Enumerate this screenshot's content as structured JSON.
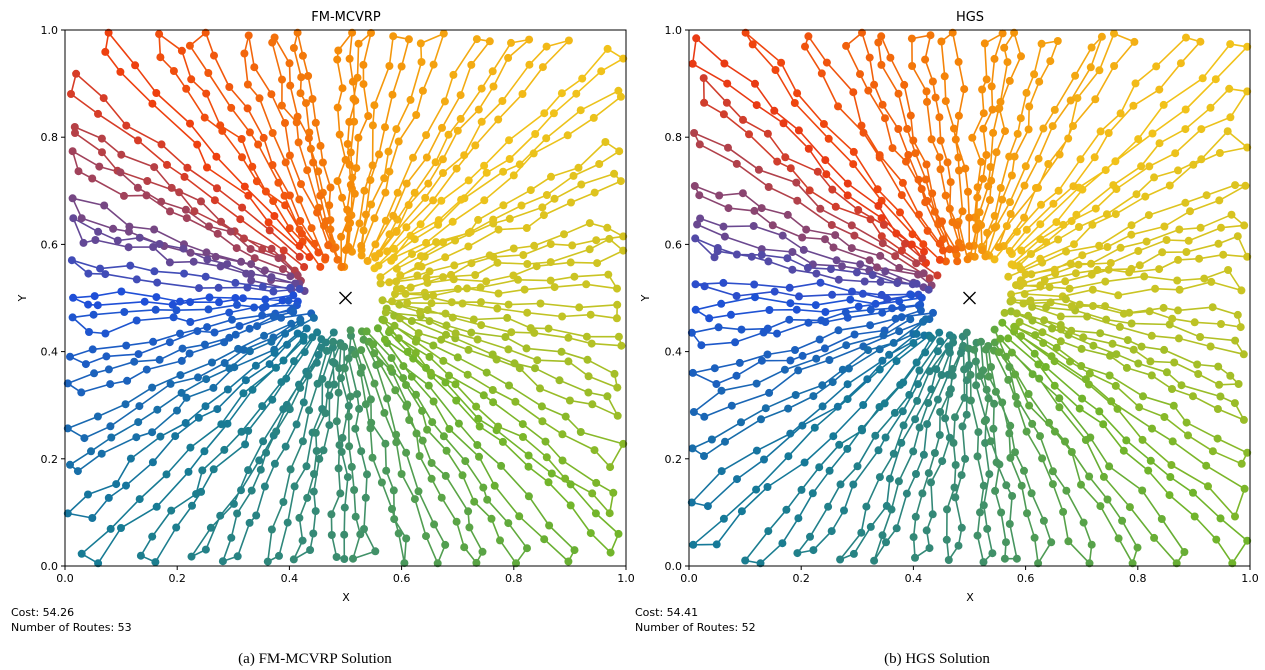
{
  "chart_data": [
    {
      "type": "scatter",
      "title": "FM-MCVRP",
      "xlabel": "X",
      "ylabel": "Y",
      "xlim": [
        0.0,
        1.0
      ],
      "ylim": [
        0.0,
        1.0
      ],
      "xticks": [
        "0.0",
        "0.2",
        "0.4",
        "0.6",
        "0.8",
        "1.0"
      ],
      "yticks": [
        "0.0",
        "0.2",
        "0.4",
        "0.6",
        "0.8",
        "1.0"
      ],
      "depot": {
        "x": 0.5,
        "y": 0.5,
        "marker": "x"
      },
      "num_routes": 53,
      "cost_text": "Cost: 54.26",
      "routes_text": "Number of Routes: 53",
      "caption": "(a) FM-MCVRP Solution",
      "grid": false,
      "legend": "none",
      "colormap": [
        "#1f4fd8",
        "#ee3b10",
        "#f58a08",
        "#f2c21a",
        "#c6c424",
        "#6fb42b",
        "#3c8d6e",
        "#157a96"
      ]
    },
    {
      "type": "scatter",
      "title": "HGS",
      "xlabel": "X",
      "ylabel": "Y",
      "xlim": [
        0.0,
        1.0
      ],
      "ylim": [
        0.0,
        1.0
      ],
      "xticks": [
        "0.0",
        "0.2",
        "0.4",
        "0.6",
        "0.8",
        "1.0"
      ],
      "yticks": [
        "0.0",
        "0.2",
        "0.4",
        "0.6",
        "0.8",
        "1.0"
      ],
      "depot": {
        "x": 0.5,
        "y": 0.5,
        "marker": "x"
      },
      "num_routes": 52,
      "cost_text": "Cost: 54.41",
      "routes_text": "Number of Routes: 52",
      "caption": "(b) HGS Solution",
      "grid": false,
      "legend": "none",
      "colormap": [
        "#1f4fd8",
        "#ee3b10",
        "#f58a08",
        "#f2c21a",
        "#c6c424",
        "#6fb42b",
        "#3c8d6e",
        "#157a96"
      ]
    }
  ]
}
